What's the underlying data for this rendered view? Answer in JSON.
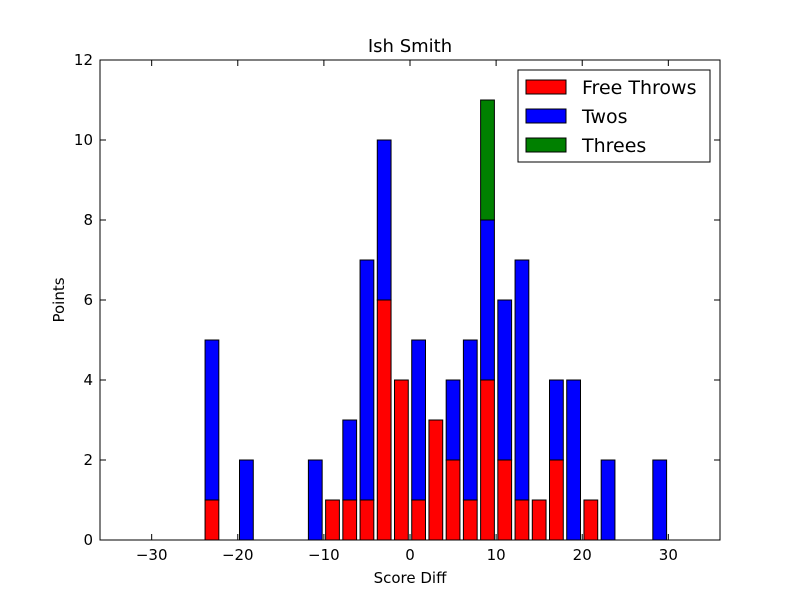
{
  "chart_data": {
    "type": "bar",
    "stacked": true,
    "title": "Ish Smith",
    "xlabel": "Score Diff",
    "ylabel": "Points",
    "xlim": [
      -36,
      36
    ],
    "ylim": [
      0,
      12
    ],
    "bar_width": 1.6,
    "x_ticks": [
      -30,
      -20,
      -10,
      0,
      10,
      20,
      30
    ],
    "x_tick_labels": [
      "−30",
      "−20",
      "−10",
      "0",
      "10",
      "20",
      "30"
    ],
    "y_ticks": [
      0,
      2,
      4,
      6,
      8,
      10,
      12
    ],
    "y_tick_labels": [
      "0",
      "2",
      "4",
      "6",
      "8",
      "10",
      "12"
    ],
    "legend_position": "top-right",
    "x": [
      -35,
      -33,
      -31,
      -29,
      -27,
      -25,
      -23,
      -21,
      -19,
      -17,
      -15,
      -13,
      -11,
      -9,
      -7,
      -5,
      -3,
      -1,
      1,
      3,
      5,
      7,
      9,
      11,
      13,
      15,
      17,
      19,
      21,
      23,
      25,
      27,
      29,
      31,
      33,
      35
    ],
    "series": [
      {
        "name": "Free Throws",
        "color": "#ff0000",
        "values": [
          0,
          0,
          0,
          0,
          0,
          0,
          1,
          0,
          0,
          0,
          0,
          0,
          0,
          1,
          1,
          1,
          6,
          4,
          1,
          3,
          2,
          1,
          4,
          2,
          1,
          1,
          2,
          0,
          1,
          0,
          0,
          0,
          0,
          0,
          0,
          0
        ]
      },
      {
        "name": "Twos",
        "color": "#0000ff",
        "values": [
          0,
          0,
          0,
          0,
          0,
          0,
          4,
          0,
          2,
          0,
          0,
          0,
          2,
          0,
          2,
          6,
          4,
          0,
          4,
          0,
          2,
          4,
          4,
          4,
          6,
          0,
          2,
          4,
          0,
          2,
          0,
          0,
          2,
          0,
          0,
          0
        ]
      },
      {
        "name": "Threes",
        "color": "#008000",
        "values": [
          0,
          0,
          0,
          0,
          0,
          0,
          0,
          0,
          0,
          0,
          0,
          0,
          0,
          0,
          0,
          0,
          0,
          0,
          0,
          0,
          0,
          0,
          3,
          0,
          0,
          0,
          0,
          0,
          0,
          0,
          0,
          0,
          0,
          0,
          0,
          0
        ]
      }
    ]
  }
}
